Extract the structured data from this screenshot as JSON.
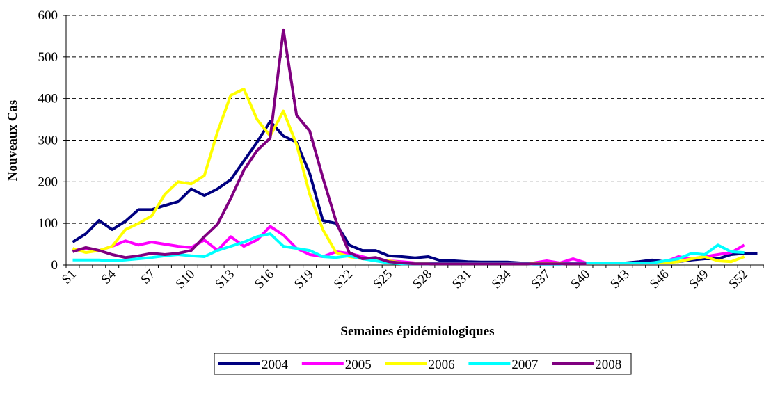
{
  "chart_data": {
    "type": "line",
    "xlabel": "Semaines épidémiologiques",
    "ylabel": "Nouveaux Cas",
    "categories": [
      "S1",
      null,
      null,
      "S4",
      null,
      null,
      "S7",
      null,
      null,
      "S10",
      null,
      null,
      "S13",
      null,
      null,
      "S16",
      null,
      null,
      "S19",
      null,
      null,
      "S22",
      null,
      null,
      "S25",
      null,
      null,
      "S28",
      null,
      null,
      "S31",
      null,
      null,
      "S34",
      null,
      null,
      "S37",
      null,
      null,
      "S40",
      null,
      null,
      "S43",
      null,
      null,
      "S46",
      null,
      null,
      "S49",
      null,
      null,
      "S52",
      null
    ],
    "ylim": [
      0,
      600
    ],
    "yticks": [
      0,
      100,
      200,
      300,
      400,
      500,
      600
    ],
    "grid": true,
    "legend": "bottom",
    "series": [
      {
        "name": "2004",
        "color": "#000080",
        "values": [
          55,
          75,
          107,
          85,
          105,
          133,
          133,
          143,
          152,
          183,
          167,
          183,
          205,
          250,
          295,
          345,
          310,
          295,
          220,
          107,
          100,
          48,
          35,
          35,
          22,
          20,
          17,
          20,
          10,
          10,
          8,
          7,
          7,
          7,
          5,
          5,
          5,
          5,
          5,
          5,
          5,
          5,
          5,
          8,
          12,
          8,
          8,
          12,
          15,
          15,
          25,
          28,
          28
        ]
      },
      {
        "name": "2005",
        "color": "#ff00ff",
        "values": [
          35,
          40,
          35,
          45,
          58,
          48,
          55,
          50,
          45,
          42,
          60,
          35,
          68,
          45,
          60,
          93,
          72,
          40,
          25,
          20,
          32,
          28,
          20,
          12,
          10,
          8,
          5,
          5,
          5,
          5,
          5,
          5,
          5,
          5,
          5,
          5,
          10,
          5,
          15,
          5,
          5,
          5,
          5,
          5,
          5,
          8,
          20,
          15,
          20,
          25,
          30,
          48,
          null
        ]
      },
      {
        "name": "2006",
        "color": "#ffff00",
        "values": [
          40,
          30,
          35,
          45,
          85,
          100,
          118,
          170,
          200,
          195,
          215,
          320,
          408,
          423,
          350,
          310,
          370,
          290,
          170,
          85,
          30,
          20,
          15,
          12,
          10,
          5,
          5,
          5,
          5,
          5,
          5,
          5,
          5,
          5,
          5,
          5,
          5,
          5,
          5,
          5,
          5,
          5,
          5,
          5,
          5,
          5,
          8,
          15,
          20,
          10,
          8,
          20,
          null
        ]
      },
      {
        "name": "2007",
        "color": "#00ffff",
        "values": [
          12,
          12,
          12,
          10,
          12,
          15,
          18,
          22,
          25,
          22,
          20,
          35,
          45,
          55,
          68,
          75,
          45,
          40,
          35,
          20,
          18,
          22,
          15,
          10,
          5,
          3,
          3,
          3,
          5,
          5,
          5,
          5,
          5,
          5,
          5,
          2,
          2,
          2,
          5,
          5,
          5,
          5,
          5,
          5,
          5,
          10,
          15,
          28,
          25,
          48,
          32,
          30,
          null
        ]
      },
      {
        "name": "2008",
        "color": "#800080",
        "values": [
          32,
          42,
          35,
          25,
          18,
          22,
          28,
          25,
          28,
          35,
          68,
          98,
          160,
          228,
          275,
          305,
          565,
          360,
          322,
          210,
          105,
          30,
          15,
          18,
          8,
          5,
          3,
          3,
          3,
          3,
          3,
          3,
          3,
          3,
          3,
          3,
          3,
          3,
          3,
          3,
          null,
          null,
          null,
          null,
          null,
          null,
          null,
          null,
          null,
          null,
          null,
          null,
          null
        ]
      }
    ]
  }
}
